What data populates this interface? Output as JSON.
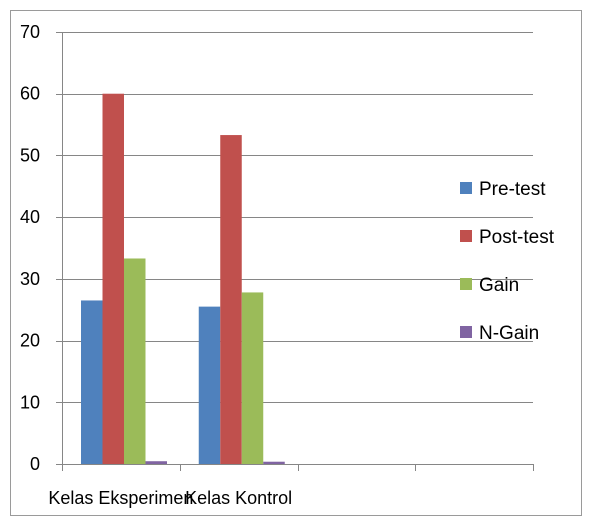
{
  "chart_data": {
    "type": "bar",
    "title": "",
    "xlabel": "",
    "ylabel": "",
    "categories": [
      "Kelas Eksperimen",
      "Kelas Kontrol",
      "",
      ""
    ],
    "ylim": [
      0,
      70
    ],
    "yticks": [
      0,
      10,
      20,
      30,
      40,
      50,
      60,
      70
    ],
    "grid": true,
    "legend_position": "right",
    "series": [
      {
        "name": "Pre-test",
        "color": "#4F81BD",
        "values": [
          26.5,
          25.5,
          null,
          null
        ]
      },
      {
        "name": "Post-test",
        "color": "#C0504D",
        "values": [
          60,
          53.3,
          null,
          null
        ]
      },
      {
        "name": "Gain",
        "color": "#9BBB59",
        "values": [
          33.3,
          27.8,
          null,
          null
        ]
      },
      {
        "name": "N-Gain",
        "color": "#8064A2",
        "values": [
          0.45,
          0.37,
          null,
          null
        ]
      }
    ]
  }
}
